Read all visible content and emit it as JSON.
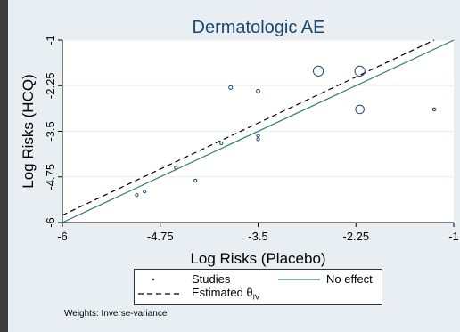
{
  "chart_data": {
    "type": "scatter",
    "title": "Dermatologic AE",
    "xlabel": "Log Risks (Placebo)",
    "ylabel": "Log Risks (HCQ)",
    "xlim": [
      -6,
      -1
    ],
    "ylim": [
      -6,
      -1
    ],
    "xticks": [
      -6,
      -4.75,
      -3.5,
      -2.25,
      -1
    ],
    "yticks": [
      -6,
      -4.75,
      -3.5,
      -2.25,
      -1
    ],
    "xtick_labels": [
      "-6",
      "-4.75",
      "-3.5",
      "-2.25",
      "-1"
    ],
    "ytick_labels": [
      "-6",
      "-4.75",
      "-3.5",
      "-2.25",
      "-1"
    ],
    "grid": true,
    "points": [
      {
        "x": -5.05,
        "y": -5.25,
        "size": 1
      },
      {
        "x": -4.95,
        "y": -5.15,
        "size": 1
      },
      {
        "x": -4.55,
        "y": -4.5,
        "size": 1
      },
      {
        "x": -4.3,
        "y": -4.85,
        "size": 1
      },
      {
        "x": -3.85,
        "y": -2.3,
        "size": 1.3
      },
      {
        "x": -3.97,
        "y": -3.83,
        "size": 1
      },
      {
        "x": -3.5,
        "y": -2.4,
        "size": 1.2
      },
      {
        "x": -3.5,
        "y": -3.62,
        "size": 1
      },
      {
        "x": -3.5,
        "y": -3.72,
        "size": 1
      },
      {
        "x": -2.73,
        "y": -1.85,
        "size": 3.5
      },
      {
        "x": -2.2,
        "y": -1.85,
        "size": 3.5
      },
      {
        "x": -2.2,
        "y": -2.9,
        "size": 3
      },
      {
        "x": -1.25,
        "y": -2.9,
        "size": 1.1
      }
    ],
    "no_effect_line": [
      [
        -6,
        -6
      ],
      [
        -1,
        -1
      ]
    ],
    "estimated_line": [
      [
        -6,
        -5.8
      ],
      [
        -1.25,
        -1
      ]
    ],
    "legend": {
      "studies": "Studies",
      "no_effect": "No effect",
      "estimated_prefix": "Estimated θ",
      "estimated_sub": "IV"
    },
    "note": "Weights: Inverse-variance",
    "colors": {
      "background": "#e9eef3",
      "plot_region": "#ffffff",
      "title": "#1a476f",
      "no_effect": "#2e7d60",
      "estimated": "#000000",
      "marker": "#1a476f",
      "grid": "#e9eef3"
    }
  }
}
